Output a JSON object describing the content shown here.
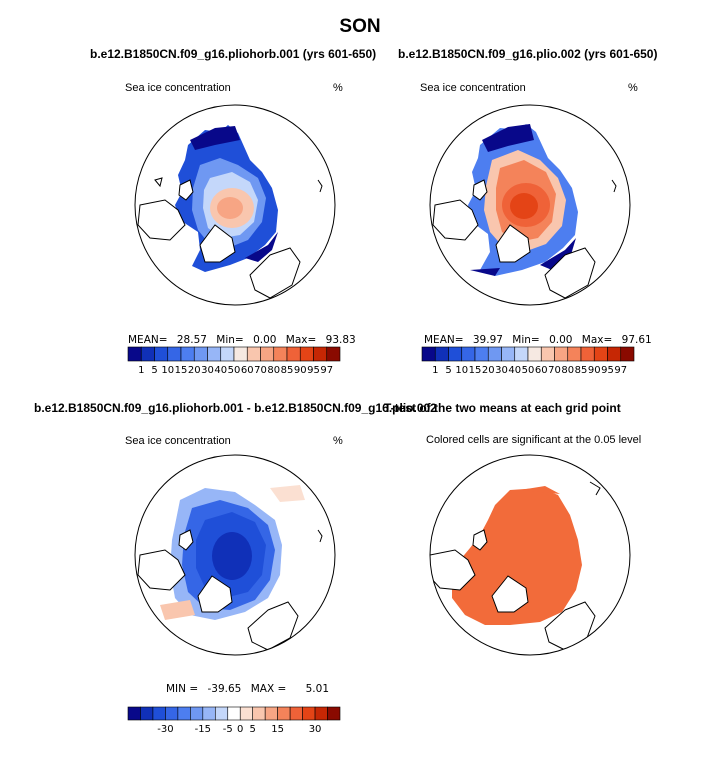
{
  "page": {
    "season": "SON"
  },
  "panels": {
    "p1": {
      "title": "b.e12.B1850CN.f09_g16.pliohorb.001 (yrs 601-650)",
      "var_label": "Sea ice concentration",
      "units": "%",
      "mean_label": "MEAN=",
      "mean": "28.57",
      "min_label": "Min=",
      "min": "0.00",
      "max_label": "Max=",
      "max": "93.83"
    },
    "p2": {
      "title": "b.e12.B1850CN.f09_g16.plio.002 (yrs 601-650)",
      "var_label": "Sea ice concentration",
      "units": "%",
      "mean_label": "MEAN=",
      "mean": "39.97",
      "min_label": "Min=",
      "min": "0.00",
      "max_label": "Max=",
      "max": "97.61"
    },
    "p3": {
      "title": "b.e12.B1850CN.f09_g16.pliohorb.001 - b.e12.B1850CN.f09_g16.plio.002",
      "var_label": "Sea ice concentration",
      "units": "%",
      "min_label": "MIN =",
      "min": "-39.65",
      "max_label": "MAX =",
      "max": "5.01"
    },
    "p4": {
      "title": "T-test of the two means at each grid point",
      "subtitle": "Colored cells are significant at the 0.05 level"
    }
  },
  "chart_data": [
    {
      "type": "heatmap",
      "projection": "north-polar-stereographic",
      "title": "b.e12.B1850CN.f09_g16.pliohorb.001 (yrs 601-650)",
      "variable": "Sea ice concentration",
      "units": "%",
      "mean": 28.57,
      "min": 0.0,
      "max": 93.83,
      "colorbar_levels": [
        1,
        5,
        10,
        15,
        20,
        30,
        40,
        50,
        60,
        70,
        80,
        85,
        90,
        95,
        97
      ],
      "colorbar_tick_labels": [
        "1",
        "5",
        "10",
        "15",
        "20",
        "30",
        "40",
        "50",
        "60",
        "70",
        "80",
        "85",
        "90",
        "95",
        "97"
      ],
      "colorbar_colors": [
        "#08088a",
        "#1030b8",
        "#1f4fd8",
        "#3566e6",
        "#4d7ef0",
        "#6f98f2",
        "#97b6f7",
        "#c4d7fa",
        "#f6e9e2",
        "#f9c6ae",
        "#f7a584",
        "#f4835a",
        "#ef6238",
        "#e44416",
        "#c62704",
        "#8a0a00"
      ]
    },
    {
      "type": "heatmap",
      "projection": "north-polar-stereographic",
      "title": "b.e12.B1850CN.f09_g16.plio.002 (yrs 601-650)",
      "variable": "Sea ice concentration",
      "units": "%",
      "mean": 39.97,
      "min": 0.0,
      "max": 97.61,
      "colorbar_levels": [
        1,
        5,
        10,
        15,
        20,
        30,
        40,
        50,
        60,
        70,
        80,
        85,
        90,
        95,
        97
      ],
      "colorbar_tick_labels": [
        "1",
        "5",
        "10",
        "15",
        "20",
        "30",
        "40",
        "50",
        "60",
        "70",
        "80",
        "85",
        "90",
        "95",
        "97"
      ],
      "colorbar_colors": [
        "#08088a",
        "#1030b8",
        "#1f4fd8",
        "#3566e6",
        "#4d7ef0",
        "#6f98f2",
        "#97b6f7",
        "#c4d7fa",
        "#f6e9e2",
        "#f9c6ae",
        "#f7a584",
        "#f4835a",
        "#ef6238",
        "#e44416",
        "#c62704",
        "#8a0a00"
      ]
    },
    {
      "type": "heatmap",
      "projection": "north-polar-stereographic",
      "title": "b.e12.B1850CN.f09_g16.pliohorb.001 - b.e12.B1850CN.f09_g16.plio.002",
      "variable": "Sea ice concentration",
      "units": "%",
      "min": -39.65,
      "max": 5.01,
      "colorbar_levels": [
        -40,
        -35,
        -30,
        -25,
        -20,
        -15,
        -10,
        -5,
        0,
        5,
        10,
        15,
        20,
        25,
        30,
        35
      ],
      "colorbar_tick_labels": [
        "-30",
        "-15",
        "-5",
        "0",
        "5",
        "15",
        "30"
      ],
      "colorbar_colors": [
        "#08088a",
        "#1030b8",
        "#1f4fd8",
        "#3566e6",
        "#4d7ef0",
        "#6f98f2",
        "#97b6f7",
        "#c4d7fa",
        "#ffffff",
        "#fbe0d2",
        "#f9c6ae",
        "#f7a584",
        "#f4835a",
        "#ef6238",
        "#e44416",
        "#c62704",
        "#8a0a00"
      ]
    },
    {
      "type": "heatmap",
      "projection": "north-polar-stereographic",
      "title": "T-test of the two means at each grid point",
      "subtitle": "Colored cells are significant at the 0.05 level",
      "significance_level": 0.05,
      "fill_color": "#f26b3a"
    }
  ]
}
